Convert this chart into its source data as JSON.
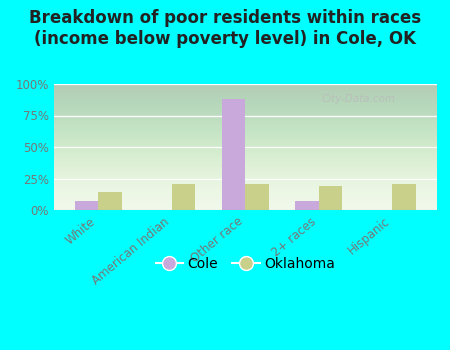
{
  "title": "Breakdown of poor residents within races\n(income below poverty level) in Cole, OK",
  "categories": [
    "White",
    "American Indian",
    "Other race",
    "2+ races",
    "Hispanic"
  ],
  "cole_values": [
    7,
    0,
    88,
    7,
    0
  ],
  "oklahoma_values": [
    14,
    21,
    21,
    19,
    21
  ],
  "cole_color": "#c9a8dc",
  "oklahoma_color": "#c8d08a",
  "background_color": "#00ffff",
  "plot_bg_top": "#d8e8c8",
  "plot_bg_bottom": "#f0f8e8",
  "bar_width": 0.32,
  "ylim": [
    0,
    100
  ],
  "yticks": [
    0,
    25,
    50,
    75,
    100
  ],
  "ytick_labels": [
    "0%",
    "25%",
    "50%",
    "75%",
    "100%"
  ],
  "title_fontsize": 12,
  "watermark": "City-Data.com",
  "legend_labels": [
    "Cole",
    "Oklahoma"
  ],
  "tick_color": "#777777",
  "grid_color": "#ffffff"
}
